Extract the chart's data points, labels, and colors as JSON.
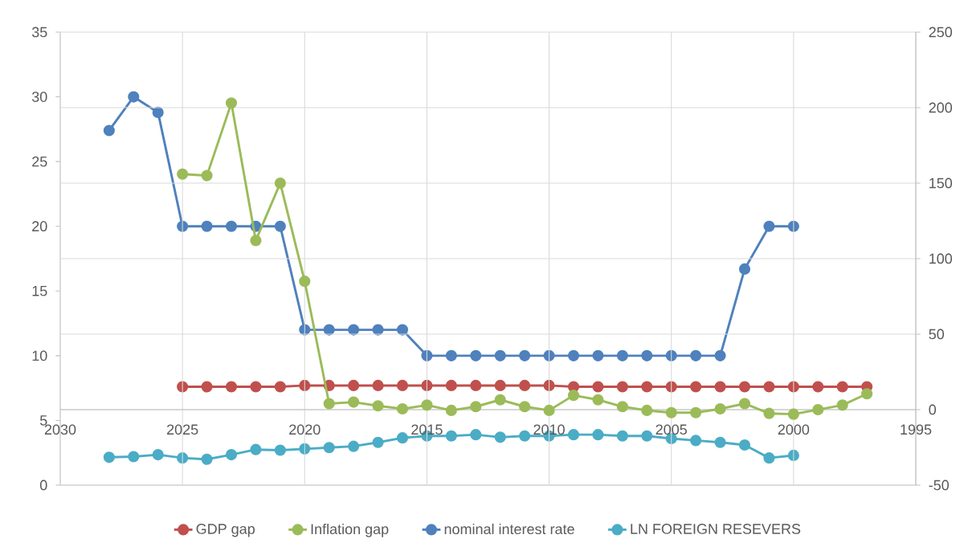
{
  "chart_data": {
    "type": "line",
    "marker": "circle",
    "grid": true,
    "legend": "bottom",
    "xlim": [
      2030,
      1995
    ],
    "xticks": [
      2030,
      2025,
      2020,
      2015,
      2010,
      2005,
      2000,
      1995
    ],
    "ylim": [
      0,
      35
    ],
    "yticks": [
      0,
      5,
      10,
      15,
      20,
      25,
      30,
      35
    ],
    "y2lim": [
      -50,
      250
    ],
    "y2ticks": [
      -50,
      0,
      50,
      100,
      150,
      200,
      250
    ],
    "series": [
      {
        "name": "GDP gap",
        "color": "#c0504d",
        "x": [
          2025,
          2024,
          2023,
          2022,
          2021,
          2020,
          2019,
          2018,
          2017,
          2016,
          2015,
          2014,
          2013,
          2012,
          2011,
          2010,
          2009,
          2008,
          2007,
          2006,
          2005,
          2004,
          2003,
          2002,
          2001,
          2000,
          1999,
          1998,
          1997
        ],
        "values": [
          7.6,
          7.6,
          7.6,
          7.6,
          7.6,
          7.7,
          7.7,
          7.7,
          7.7,
          7.7,
          7.7,
          7.7,
          7.7,
          7.7,
          7.7,
          7.7,
          7.6,
          7.6,
          7.6,
          7.6,
          7.6,
          7.6,
          7.6,
          7.6,
          7.6,
          7.6,
          7.6,
          7.6,
          7.6
        ]
      },
      {
        "name": "Inflation gap",
        "color": "#9bbb59",
        "axis": "y2",
        "x": [
          2025,
          2024,
          2023,
          2022,
          2021,
          2020,
          2019,
          2018,
          2017,
          2016,
          2015,
          2014,
          2013,
          2012,
          2011,
          2010,
          2009,
          2008,
          2007,
          2006,
          2005,
          2004,
          2003,
          2002,
          2001,
          2000,
          1999,
          1998,
          1997
        ],
        "values": [
          156,
          155,
          203,
          112,
          150,
          85,
          4,
          5,
          2.5,
          0.5,
          3,
          -0.5,
          2,
          6.5,
          2,
          -0.5,
          9.5,
          6.5,
          2,
          -0.5,
          -2,
          -2,
          0.5,
          4,
          -2.5,
          -3,
          0,
          3,
          10.5
        ]
      },
      {
        "name": "nominal interest rate",
        "color": "#4f81bd",
        "x": [
          2028,
          2027,
          2026,
          2025,
          2024,
          2023,
          2022,
          2021,
          2020,
          2019,
          2018,
          2017,
          2016,
          2015,
          2014,
          2013,
          2012,
          2011,
          2010,
          2009,
          2008,
          2007,
          2006,
          2005,
          2004,
          2003,
          2002,
          2001,
          2000
        ],
        "values": [
          27.4,
          30,
          28.8,
          20,
          20,
          20,
          20,
          20,
          12,
          12,
          12,
          12,
          12,
          10,
          10,
          10,
          10,
          10,
          10,
          10,
          10,
          10,
          10,
          10,
          10,
          10,
          16.7,
          20,
          20
        ]
      },
      {
        "name": "LN  FOREIGN RESEVERS",
        "color": "#4bacc6",
        "x": [
          2028,
          2027,
          2026,
          2025,
          2024,
          2023,
          2022,
          2021,
          2020,
          2019,
          2018,
          2017,
          2016,
          2015,
          2014,
          2013,
          2012,
          2011,
          2010,
          2009,
          2008,
          2007,
          2006,
          2005,
          2004,
          2003,
          2002,
          2001,
          2000
        ],
        "values": [
          2.15,
          2.2,
          2.35,
          2.1,
          2.0,
          2.35,
          2.75,
          2.7,
          2.8,
          2.9,
          3.0,
          3.3,
          3.65,
          3.8,
          3.8,
          3.9,
          3.7,
          3.8,
          3.8,
          3.9,
          3.9,
          3.8,
          3.8,
          3.6,
          3.45,
          3.3,
          3.1,
          2.1,
          2.3
        ]
      }
    ]
  }
}
